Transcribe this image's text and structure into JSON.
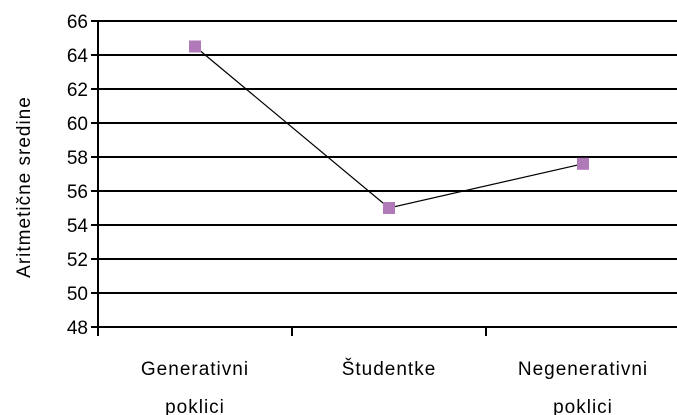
{
  "chart_data": {
    "type": "line",
    "categories": [
      [
        "Generativni",
        "poklici"
      ],
      [
        "Študentke"
      ],
      [
        "Negenerativni",
        "poklici"
      ]
    ],
    "values": [
      64.5,
      55.0,
      57.6
    ],
    "ylabel": "Aritmetične sredine",
    "ylim": [
      48,
      66
    ],
    "yticks": [
      48,
      50,
      52,
      54,
      56,
      58,
      60,
      62,
      64,
      66
    ],
    "grid": true,
    "legend": "none",
    "line_color": "#000000",
    "marker_color": "#b07ab8",
    "grid_color": "#000000"
  }
}
